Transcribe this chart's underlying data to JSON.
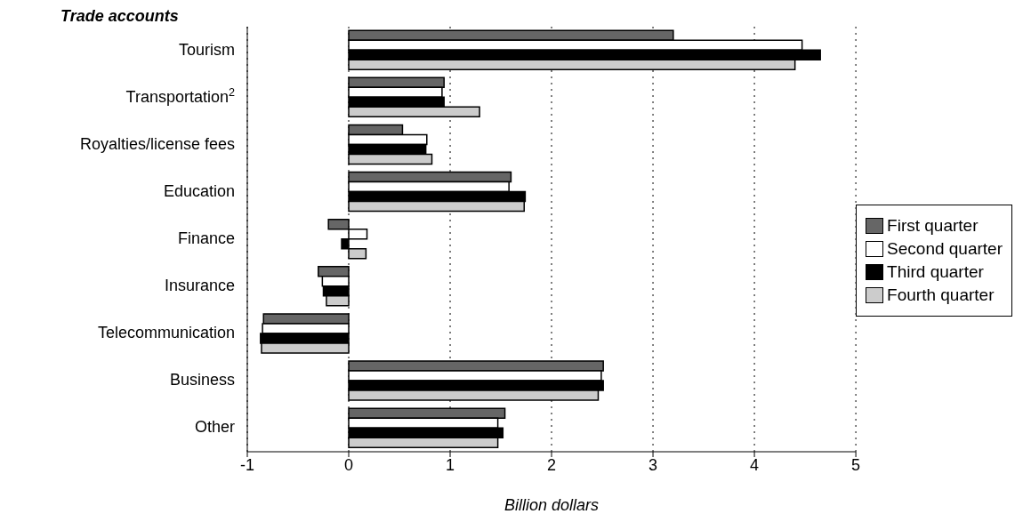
{
  "chart_data": {
    "type": "bar",
    "orientation": "horizontal",
    "ylabel": "Trade accounts",
    "xlabel": "Billion dollars",
    "categories": [
      "Tourism",
      "Transportation$^{2}$",
      "Royalties/license fees",
      "Education",
      "Finance",
      "Insurance",
      "Telecommunication",
      "Business",
      "Other"
    ],
    "series": [
      {
        "name": "First quarter",
        "color": "#666666",
        "values": [
          3.2,
          0.94,
          0.53,
          1.6,
          -0.2,
          -0.3,
          -0.84,
          2.51,
          1.54
        ]
      },
      {
        "name": "Second quarter",
        "color": "#ffffff",
        "values": [
          4.47,
          0.92,
          0.77,
          1.58,
          0.18,
          -0.26,
          -0.85,
          2.49,
          1.47
        ]
      },
      {
        "name": "Third quarter",
        "color": "#000000",
        "values": [
          4.65,
          0.94,
          0.76,
          1.74,
          -0.07,
          -0.25,
          -0.87,
          2.51,
          1.52
        ]
      },
      {
        "name": "Fourth quarter",
        "color": "#cccccc",
        "values": [
          4.4,
          1.29,
          0.82,
          1.73,
          0.17,
          -0.22,
          -0.86,
          2.46,
          1.47
        ]
      }
    ],
    "xlim": [
      -1,
      5
    ],
    "xticks": [
      -1,
      0,
      1,
      2,
      3,
      4,
      5
    ],
    "grid": "x",
    "legend": "right"
  }
}
